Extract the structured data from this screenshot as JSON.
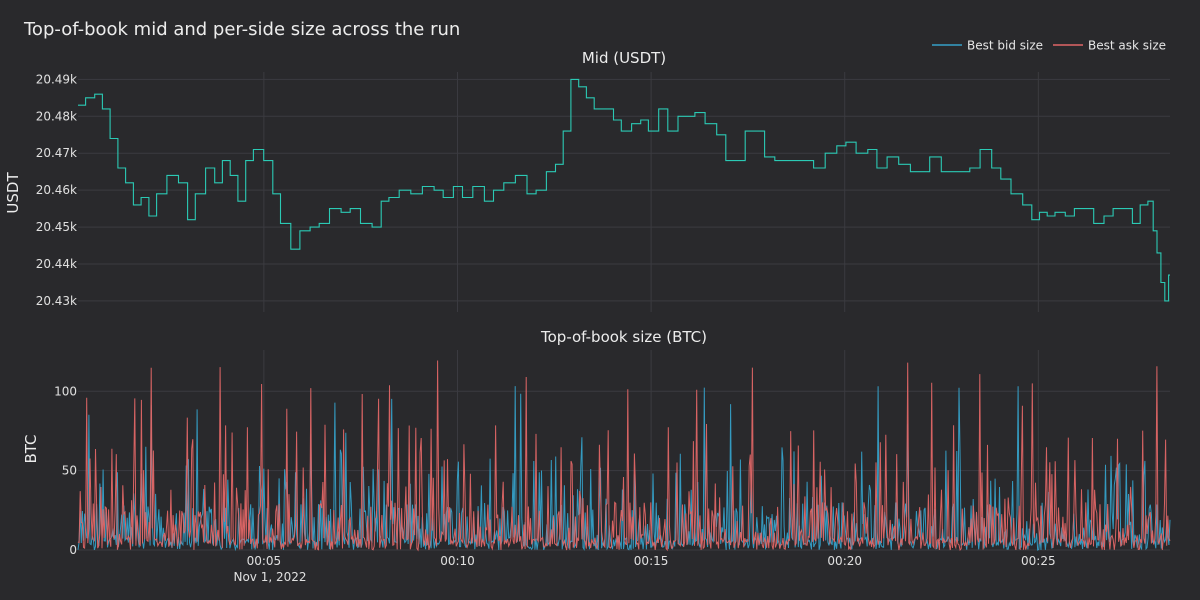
{
  "chart_data": {
    "title": "Top-of-book mid and per-side size across the run",
    "legend": {
      "placement": "top-right",
      "items": [
        {
          "name": "Best bid size",
          "color": "#35a0c8"
        },
        {
          "name": "Best ask size",
          "color": "#e06666"
        }
      ]
    },
    "x_axis": {
      "ticks": [
        "00:05",
        "00:10",
        "00:15",
        "00:20",
        "00:25"
      ],
      "tick_minutes": [
        5,
        10,
        15,
        20,
        25
      ],
      "date_label": "Nov 1, 2022",
      "range_minutes": [
        0.2,
        28.4
      ]
    },
    "panels": [
      {
        "type": "line",
        "subtitle": "Mid (USDT)",
        "ylabel": "USDT",
        "ylim": [
          20427,
          20492
        ],
        "yticks": [
          20430,
          20440,
          20450,
          20460,
          20470,
          20480,
          20490
        ],
        "ytick_labels": [
          "20.43k",
          "20.44k",
          "20.45k",
          "20.46k",
          "20.47k",
          "20.48k",
          "20.49k"
        ],
        "series": [
          {
            "name": "Mid",
            "color": "#2bc9b4",
            "x_minutes": [
              0.2,
              0.5,
              0.7,
              0.9,
              1.1,
              1.3,
              1.5,
              1.7,
              1.9,
              2.1,
              2.3,
              2.6,
              2.9,
              3.1,
              3.3,
              3.6,
              3.8,
              4.0,
              4.2,
              4.4,
              4.6,
              4.8,
              5.1,
              5.3,
              5.5,
              5.8,
              6.0,
              6.3,
              6.5,
              6.8,
              7.1,
              7.3,
              7.6,
              7.9,
              8.1,
              8.3,
              8.6,
              8.9,
              9.2,
              9.5,
              9.7,
              10.0,
              10.2,
              10.5,
              10.8,
              11.0,
              11.3,
              11.6,
              11.9,
              12.1,
              12.4,
              12.6,
              12.8,
              13.0,
              13.2,
              13.4,
              13.6,
              13.9,
              14.1,
              14.3,
              14.6,
              14.8,
              15.0,
              15.3,
              15.5,
              15.8,
              16.0,
              16.2,
              16.5,
              16.8,
              17.0,
              17.3,
              17.5,
              17.8,
              18.0,
              18.3,
              18.6,
              18.8,
              19.0,
              19.3,
              19.6,
              19.9,
              20.1,
              20.4,
              20.7,
              20.9,
              21.2,
              21.5,
              21.8,
              22.0,
              22.3,
              22.6,
              22.9,
              23.1,
              23.3,
              23.6,
              23.9,
              24.1,
              24.4,
              24.7,
              24.9,
              25.1,
              25.3,
              25.5,
              25.8,
              26.0,
              26.3,
              26.5,
              26.8,
              27.0,
              27.3,
              27.5,
              27.7,
              27.9,
              28.0,
              28.1,
              28.2,
              28.3,
              28.4
            ],
            "values": [
              20483,
              20485,
              20486,
              20482,
              20474,
              20466,
              20462,
              20456,
              20458,
              20453,
              20459,
              20464,
              20462,
              20452,
              20459,
              20466,
              20462,
              20468,
              20464,
              20457,
              20468,
              20471,
              20468,
              20459,
              20451,
              20444,
              20449,
              20450,
              20451,
              20455,
              20454,
              20455,
              20451,
              20450,
              20457,
              20458,
              20460,
              20459,
              20461,
              20460,
              20458,
              20461,
              20458,
              20461,
              20457,
              20460,
              20462,
              20464,
              20459,
              20460,
              20465,
              20467,
              20476,
              20490,
              20488,
              20485,
              20482,
              20482,
              20479,
              20476,
              20478,
              20479,
              20476,
              20482,
              20476,
              20480,
              20480,
              20481,
              20478,
              20475,
              20468,
              20468,
              20476,
              20476,
              20469,
              20468,
              20468,
              20468,
              20468,
              20466,
              20470,
              20472,
              20473,
              20470,
              20471,
              20466,
              20469,
              20467,
              20465,
              20465,
              20469,
              20465,
              20465,
              20465,
              20466,
              20471,
              20466,
              20463,
              20459,
              20456,
              20452,
              20454,
              20453,
              20454,
              20453,
              20455,
              20455,
              20451,
              20453,
              20455,
              20455,
              20451,
              20456,
              20457,
              20449,
              20443,
              20435,
              20430,
              20437
            ]
          }
        ]
      },
      {
        "type": "line",
        "subtitle": "Top-of-book size (BTC)",
        "ylabel": "BTC",
        "ylim": [
          0,
          126
        ],
        "yticks": [
          0,
          50,
          100
        ],
        "ytick_labels": [
          "0",
          "50",
          "100"
        ],
        "series": [
          {
            "name": "Best bid size",
            "color": "#35a0c8",
            "n_points": 1000,
            "typical_max": 60,
            "peak_max": 104
          },
          {
            "name": "Best ask size",
            "color": "#e06666",
            "n_points": 1000,
            "typical_max": 80,
            "peak_max": 120
          }
        ]
      }
    ]
  }
}
